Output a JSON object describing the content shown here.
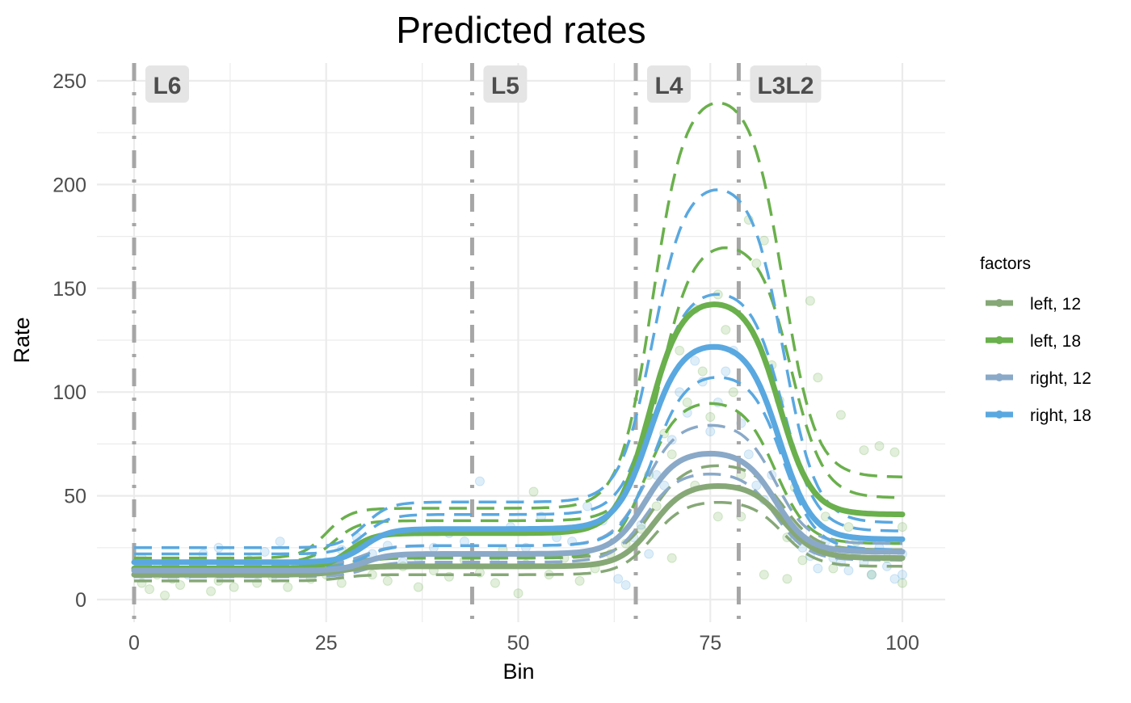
{
  "chart_data": {
    "type": "line",
    "title": "Predicted rates",
    "xlabel": "Bin",
    "ylabel": "Rate",
    "xlim": [
      -2.5,
      105
    ],
    "ylim": [
      -10,
      258
    ],
    "xticks": [
      0,
      25,
      50,
      75,
      100
    ],
    "yticks": [
      0,
      50,
      100,
      150,
      200,
      250
    ],
    "xtick_labels": [
      "0",
      "25",
      "50",
      "75",
      "100"
    ],
    "ytick_labels": [
      "0",
      "50",
      "100",
      "150",
      "200",
      "250"
    ],
    "grid": true,
    "legend": {
      "title": "factors",
      "position": "right"
    },
    "landmarks": [
      {
        "label": "L6",
        "x": 0
      },
      {
        "label": "L5",
        "x": 44
      },
      {
        "label": "L4",
        "x": 65.3
      },
      {
        "label": "L3L2",
        "x": 78.7
      }
    ],
    "series": [
      {
        "name": "left, 12",
        "color": "#86a877",
        "fit": {
          "base": 12,
          "step_x": 27,
          "plateau": 16,
          "peak": 56,
          "peak_x": 76,
          "tail": 20
        },
        "bands": [
          {
            "base": 9,
            "step_x": 27,
            "plateau": 12,
            "peak": 48,
            "peak_x": 76,
            "tail": 16
          },
          {
            "base": 15,
            "step_x": 27,
            "plateau": 20,
            "peak": 66,
            "peak_x": 76,
            "tail": 24
          }
        ]
      },
      {
        "name": "left, 18",
        "color": "#6ab04c",
        "fit": {
          "base": 15,
          "step_x": 28,
          "plateau": 32,
          "peak": 146,
          "peak_x": 75.5,
          "tail": 41
        },
        "bands": [
          {
            "base": 12,
            "step_x": 28,
            "plateau": 20,
            "peak": 97,
            "peak_x": 75,
            "tail": 27
          },
          {
            "base": 18,
            "step_x": 26,
            "plateau": 38,
            "peak": 174,
            "peak_x": 77,
            "tail": 49
          },
          {
            "base": 20,
            "step_x": 25,
            "plateau": 44,
            "peak": 246,
            "peak_x": 76,
            "tail": 59
          }
        ]
      },
      {
        "name": "right, 12",
        "color": "#8aa9c8",
        "fit": {
          "base": 14,
          "step_x": 30,
          "plateau": 22,
          "peak": 72,
          "peak_x": 75,
          "tail": 23
        },
        "bands": [
          {
            "base": 11,
            "step_x": 30,
            "plateau": 18,
            "peak": 62,
            "peak_x": 75,
            "tail": 19
          },
          {
            "base": 17,
            "step_x": 30,
            "plateau": 26,
            "peak": 86,
            "peak_x": 75,
            "tail": 27
          }
        ]
      },
      {
        "name": "right, 18",
        "color": "#5aa8e0",
        "fit": {
          "base": 18,
          "step_x": 30,
          "plateau": 34,
          "peak": 125,
          "peak_x": 75.5,
          "tail": 29
        },
        "bands": [
          {
            "base": 15,
            "step_x": 30,
            "plateau": 26,
            "peak": 110,
            "peak_x": 76,
            "tail": 24
          },
          {
            "base": 22,
            "step_x": 30,
            "plateau": 41,
            "peak": 151,
            "peak_x": 76,
            "tail": 33
          },
          {
            "base": 25,
            "step_x": 30,
            "plateau": 47,
            "peak": 203,
            "peak_x": 76,
            "tail": 37
          }
        ]
      }
    ],
    "points": {
      "green": [
        [
          1,
          8
        ],
        [
          2,
          5
        ],
        [
          3,
          12
        ],
        [
          4,
          2
        ],
        [
          5,
          10
        ],
        [
          6,
          7
        ],
        [
          8,
          14
        ],
        [
          10,
          4
        ],
        [
          11,
          9
        ],
        [
          13,
          6
        ],
        [
          14,
          13
        ],
        [
          16,
          8
        ],
        [
          18,
          11
        ],
        [
          20,
          6
        ],
        [
          21,
          15
        ],
        [
          23,
          10
        ],
        [
          25,
          12
        ],
        [
          27,
          8
        ],
        [
          29,
          18
        ],
        [
          31,
          12
        ],
        [
          33,
          9
        ],
        [
          35,
          16
        ],
        [
          37,
          6
        ],
        [
          39,
          14
        ],
        [
          41,
          11
        ],
        [
          43,
          19
        ],
        [
          45,
          13
        ],
        [
          47,
          8
        ],
        [
          48,
          24
        ],
        [
          50,
          3
        ],
        [
          51,
          17
        ],
        [
          52,
          52
        ],
        [
          54,
          12
        ],
        [
          56,
          20
        ],
        [
          58,
          9
        ],
        [
          60,
          15
        ],
        [
          62,
          22
        ],
        [
          64,
          27
        ],
        [
          66,
          34
        ],
        [
          67,
          60
        ],
        [
          68,
          45
        ],
        [
          69,
          80
        ],
        [
          70,
          70
        ],
        [
          71,
          120
        ],
        [
          72,
          95
        ],
        [
          73,
          140
        ],
        [
          74,
          110
        ],
        [
          75,
          88
        ],
        [
          76,
          147
        ],
        [
          77,
          130
        ],
        [
          78,
          100
        ],
        [
          79,
          60
        ],
        [
          80,
          183
        ],
        [
          81,
          162
        ],
        [
          82,
          173
        ],
        [
          83,
          113
        ],
        [
          84,
          96
        ],
        [
          85,
          30
        ],
        [
          86,
          54
        ],
        [
          87,
          19
        ],
        [
          88,
          144
        ],
        [
          89,
          107
        ],
        [
          90,
          40
        ],
        [
          91,
          15
        ],
        [
          92,
          89
        ],
        [
          93,
          35
        ],
        [
          94,
          28
        ],
        [
          95,
          72
        ],
        [
          96,
          12
        ],
        [
          97,
          74
        ],
        [
          98,
          20
        ],
        [
          99,
          71
        ],
        [
          100,
          8
        ],
        [
          100,
          35
        ],
        [
          85,
          10
        ],
        [
          82,
          12
        ],
        [
          79,
          40
        ],
        [
          76,
          40
        ],
        [
          73,
          55
        ],
        [
          70,
          20
        ]
      ],
      "blue": [
        [
          1,
          20
        ],
        [
          3,
          15
        ],
        [
          5,
          18
        ],
        [
          7,
          12
        ],
        [
          9,
          22
        ],
        [
          11,
          25
        ],
        [
          13,
          14
        ],
        [
          15,
          19
        ],
        [
          17,
          23
        ],
        [
          19,
          28
        ],
        [
          21,
          16
        ],
        [
          23,
          20
        ],
        [
          25,
          18
        ],
        [
          27,
          24
        ],
        [
          29,
          30
        ],
        [
          31,
          22
        ],
        [
          33,
          26
        ],
        [
          35,
          18
        ],
        [
          37,
          20
        ],
        [
          39,
          25
        ],
        [
          41,
          32
        ],
        [
          43,
          28
        ],
        [
          45,
          57
        ],
        [
          47,
          20
        ],
        [
          49,
          35
        ],
        [
          51,
          25
        ],
        [
          53,
          40
        ],
        [
          55,
          30
        ],
        [
          57,
          28
        ],
        [
          59,
          45
        ],
        [
          61,
          38
        ],
        [
          63,
          10
        ],
        [
          64,
          7
        ],
        [
          65,
          30
        ],
        [
          66,
          36
        ],
        [
          67,
          22
        ],
        [
          68,
          60
        ],
        [
          69,
          55
        ],
        [
          70,
          77
        ],
        [
          71,
          100
        ],
        [
          72,
          90
        ],
        [
          73,
          115
        ],
        [
          74,
          105
        ],
        [
          75,
          81
        ],
        [
          76,
          95
        ],
        [
          77,
          110
        ],
        [
          78,
          120
        ],
        [
          79,
          85
        ],
        [
          80,
          70
        ],
        [
          81,
          55
        ],
        [
          82,
          48
        ],
        [
          83,
          60
        ],
        [
          84,
          45
        ],
        [
          85,
          38
        ],
        [
          86,
          30
        ],
        [
          87,
          25
        ],
        [
          88,
          21
        ],
        [
          89,
          15
        ],
        [
          90,
          28
        ],
        [
          91,
          20
        ],
        [
          92,
          18
        ],
        [
          93,
          14
        ],
        [
          94,
          22
        ],
        [
          95,
          18
        ],
        [
          96,
          12
        ],
        [
          97,
          25
        ],
        [
          98,
          16
        ],
        [
          99,
          10
        ],
        [
          100,
          12
        ],
        [
          100,
          22
        ]
      ]
    }
  }
}
